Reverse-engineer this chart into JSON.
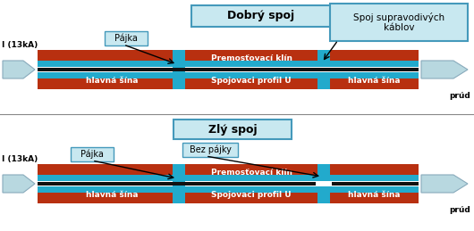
{
  "title1": "Dobrý spoj",
  "title2": "Zlý spoj",
  "label_pajka": "Pájka",
  "label_bez_pajky": "Bez pájky",
  "label_premos": "Premosťovací klín",
  "label_spojovaci": "Spojovaci profil U",
  "label_hlavna": "hlavná šína",
  "label_spoj_supra": "Spoj supravodivých\nkáblov",
  "label_current": "I (13kA)",
  "label_prud": "prúd",
  "bg_color": "#ffffff",
  "cable_color": "#b83010",
  "blue_color": "#22aacc",
  "black_color": "#111111",
  "white_color": "#ffffff",
  "arrow_color": "#b8d8e0",
  "box_fill": "#c8e8f0",
  "box_edge": "#4499bb"
}
